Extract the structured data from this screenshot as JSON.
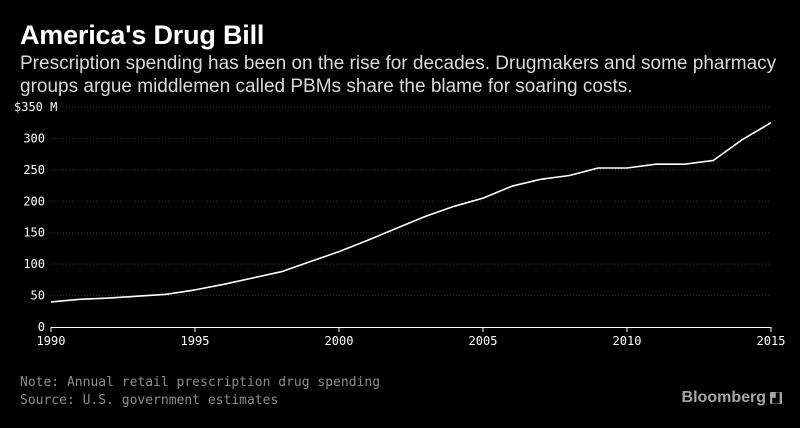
{
  "header": {
    "title": "America's Drug Bill",
    "subtitle": "Prescription spending has been on the rise for decades. Drugmakers and some pharmacy groups argue middlemen called PBMs share the blame for soaring costs."
  },
  "footer": {
    "note": "Note: Annual retail prescription drug spending",
    "source": "Source: U.S. government estimates",
    "brand": "Bloomberg",
    "brand_icon": "bloomberg-logo-icon"
  },
  "colors": {
    "background": "#000000",
    "line": "#ffffff",
    "grid": "#3a3a3a",
    "axis_text": "#ffffff",
    "muted_text": "#8c8c8c"
  },
  "chart_data": {
    "type": "line",
    "title": "America's Drug Bill",
    "xlabel": "",
    "ylabel": "",
    "xlim": [
      1990,
      2015
    ],
    "ylim": [
      0,
      350
    ],
    "grid": true,
    "x_ticks": [
      1990,
      1995,
      2000,
      2005,
      2010,
      2015
    ],
    "y_ticks": [
      0,
      50,
      100,
      150,
      200,
      250,
      300,
      350
    ],
    "y_tick_labels": [
      "0",
      "50",
      "100",
      "150",
      "200",
      "250",
      "300",
      "$350 M"
    ],
    "series": [
      {
        "name": "",
        "x": [
          1990,
          1991,
          1992,
          1993,
          1994,
          1995,
          1996,
          1997,
          1998,
          1999,
          2000,
          2001,
          2002,
          2003,
          2004,
          2005,
          2006,
          2007,
          2008,
          2009,
          2010,
          2011,
          2012,
          2013,
          2014,
          2015
        ],
        "values": [
          40,
          44,
          46,
          49,
          52,
          59,
          68,
          78,
          88,
          104,
          120,
          138,
          157,
          176,
          192,
          205,
          224,
          235,
          241,
          253,
          253,
          259,
          259,
          265,
          298,
          325
        ]
      }
    ]
  }
}
